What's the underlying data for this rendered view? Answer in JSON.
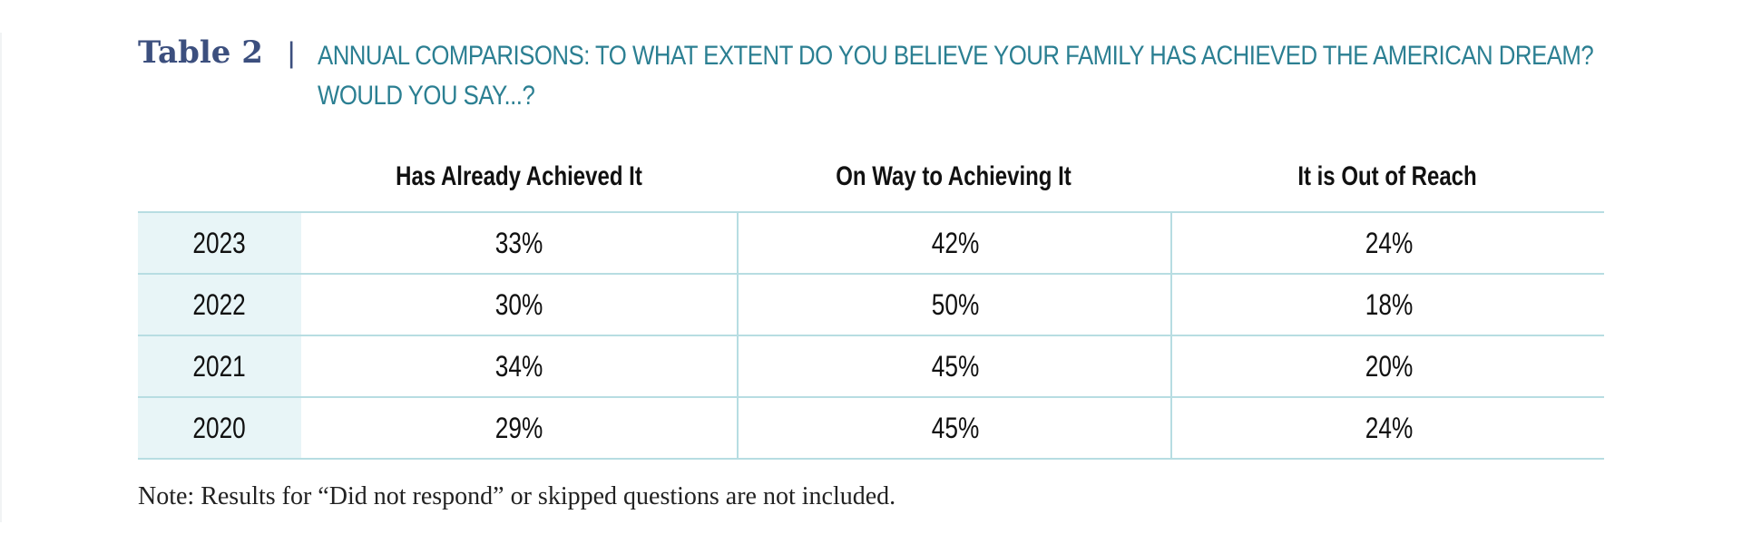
{
  "title": {
    "label": "Table 2",
    "separator": "|",
    "text": "ANNUAL COMPARISONS: TO WHAT EXTENT DO YOU BELIEVE YOUR FAMILY HAS ACHIEVED THE AMERICAN DREAM? WOULD YOU SAY...?"
  },
  "colors": {
    "label": "#3c4f7e",
    "title": "#2b7f92",
    "row_header_bg": "#e8f5f7",
    "rule": "#b7dde2"
  },
  "table": {
    "columns": [
      "Has Already Achieved It",
      "On Way to Achieving It",
      "It is Out of Reach"
    ],
    "rows": [
      {
        "year": "2023",
        "values": [
          "33%",
          "42%",
          "24%"
        ]
      },
      {
        "year": "2022",
        "values": [
          "30%",
          "50%",
          "18%"
        ]
      },
      {
        "year": "2021",
        "values": [
          "34%",
          "45%",
          "20%"
        ]
      },
      {
        "year": "2020",
        "values": [
          "29%",
          "45%",
          "24%"
        ]
      }
    ]
  },
  "note": "Note: Results for “Did not respond” or skipped questions are not included."
}
